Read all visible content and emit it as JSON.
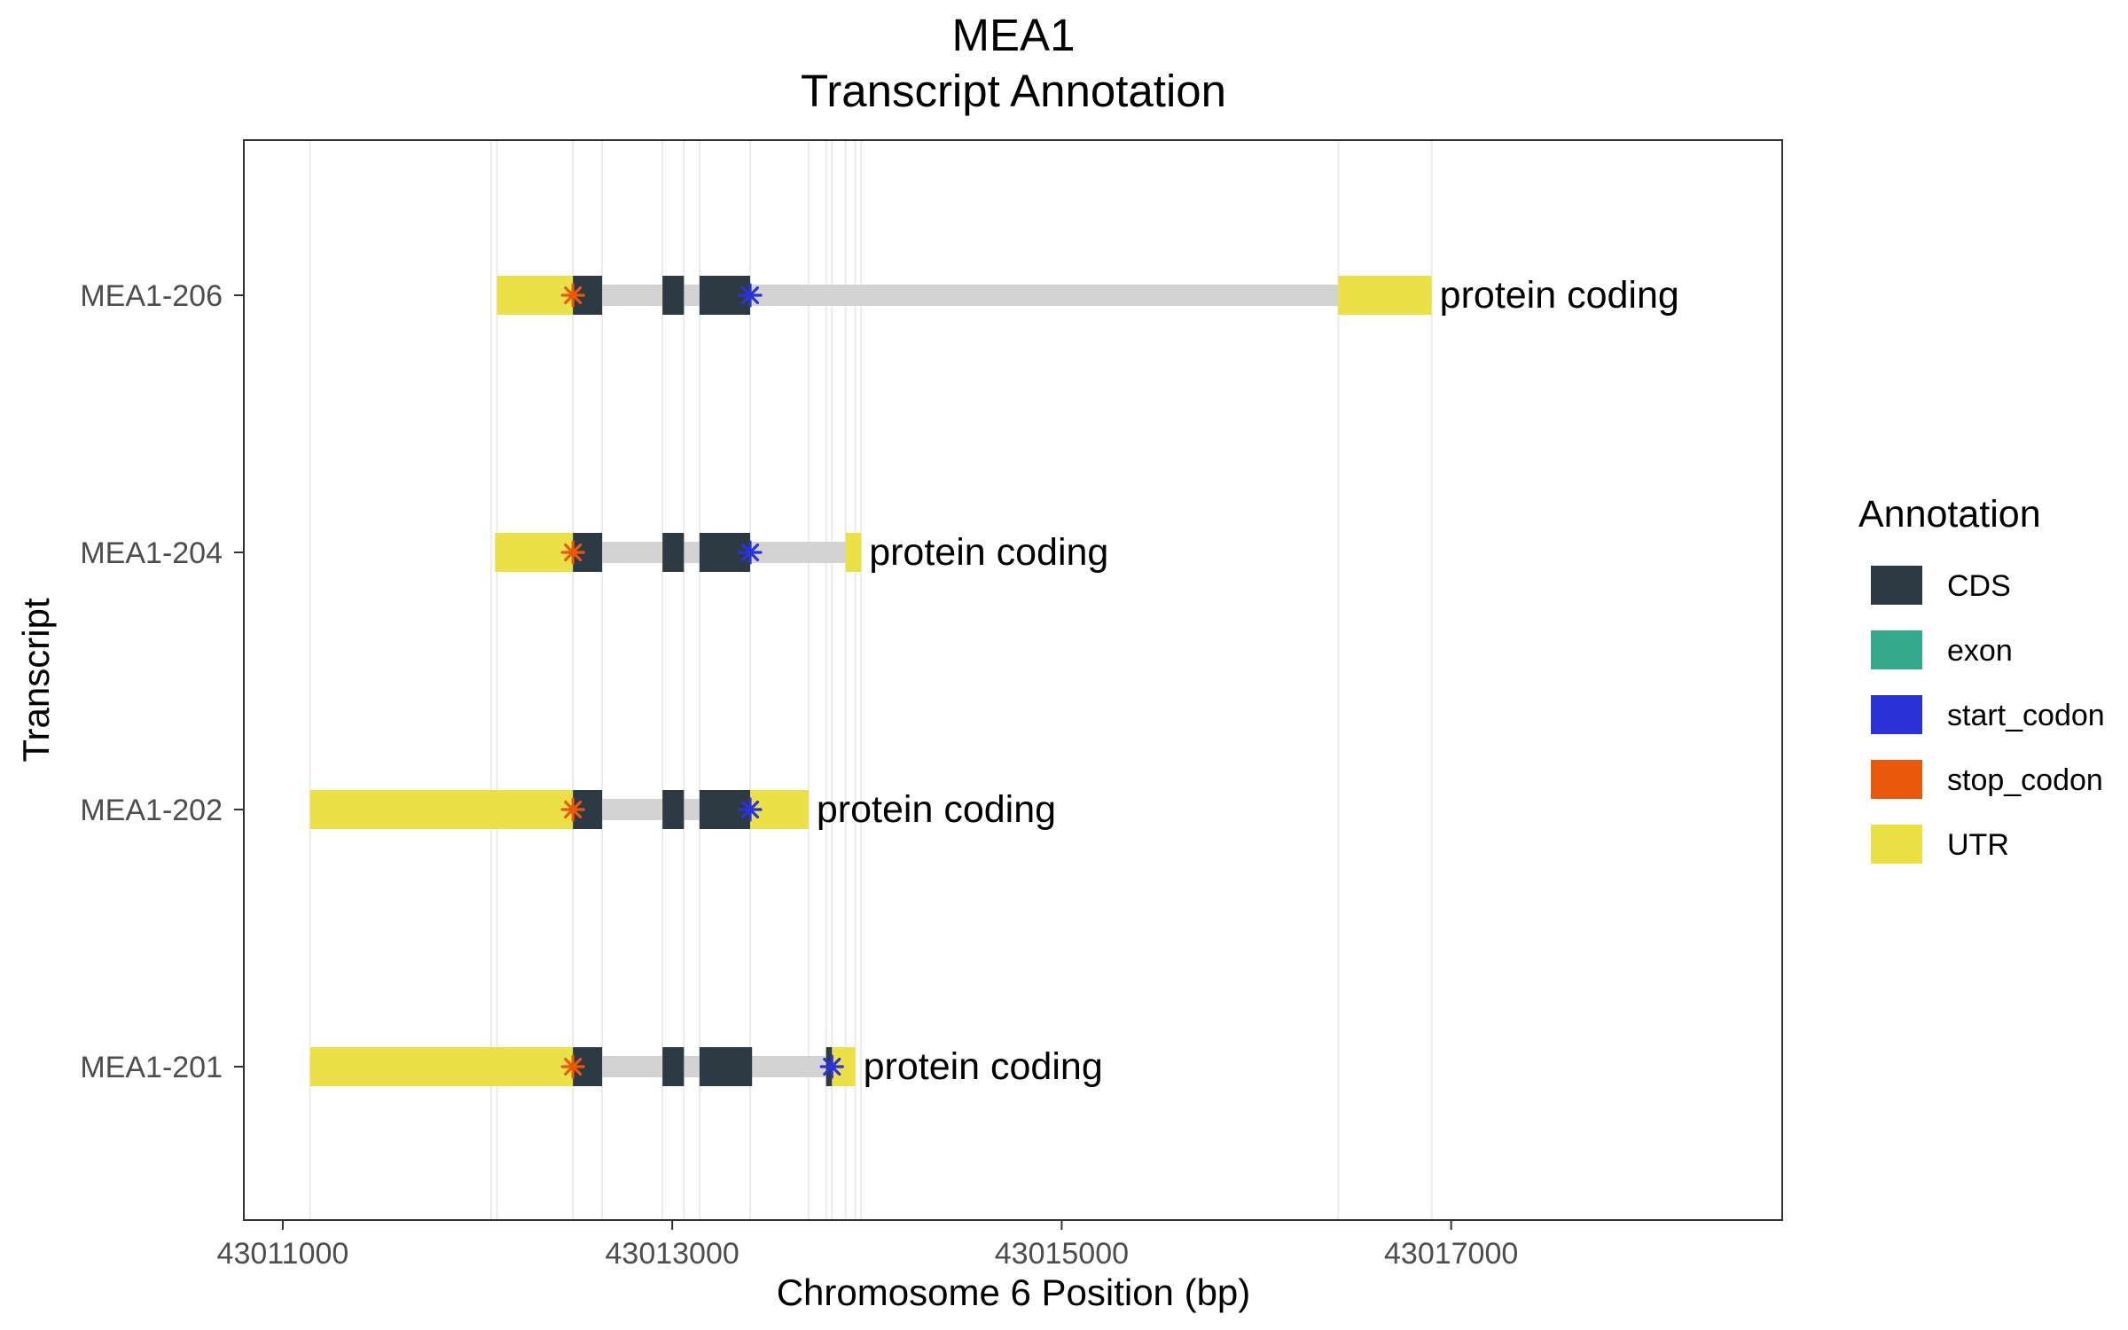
{
  "chart_data": {
    "type": "gene-track",
    "title": "MEA1",
    "subtitle": "Transcript Annotation",
    "xlabel": "Chromosome 6 Position (bp)",
    "ylabel": "Transcript",
    "xlim": [
      43010800,
      43018700
    ],
    "x_ticks": [
      43011000,
      43013000,
      43015000,
      43017000
    ],
    "x_tick_labels": [
      "43011000",
      "43013000",
      "43015000",
      "43017000"
    ],
    "grid": "vertical",
    "legend": {
      "title": "Annotation",
      "position": "right",
      "items": [
        {
          "label": "CDS",
          "color": "#2e3a43"
        },
        {
          "label": "exon",
          "color": "#35a98e"
        },
        {
          "label": "start_codon",
          "color": "#2a32d8"
        },
        {
          "label": "stop_codon",
          "color": "#e8590c"
        },
        {
          "label": "UTR",
          "color": "#ebe146"
        }
      ]
    },
    "intron_color": "#d3d3d3",
    "transcripts": [
      {
        "name": "MEA1-206",
        "biotype": "protein coding",
        "start": 43012100,
        "end": 43016900,
        "utr": [
          [
            43012100,
            43012490
          ],
          [
            43016420,
            43016900
          ]
        ],
        "cds": [
          [
            43012490,
            43012640
          ],
          [
            43012950,
            43013060
          ],
          [
            43013140,
            43013400
          ]
        ],
        "stop_codon": 43012490,
        "start_codon": 43013400
      },
      {
        "name": "MEA1-204",
        "biotype": "protein coding",
        "start": 43012090,
        "end": 43013970,
        "utr": [
          [
            43012090,
            43012490
          ],
          [
            43013890,
            43013970
          ]
        ],
        "cds": [
          [
            43012490,
            43012640
          ],
          [
            43012950,
            43013060
          ],
          [
            43013140,
            43013400
          ]
        ],
        "stop_codon": 43012490,
        "start_codon": 43013400
      },
      {
        "name": "MEA1-202",
        "biotype": "protein coding",
        "start": 43011140,
        "end": 43013700,
        "utr": [
          [
            43011140,
            43012490
          ],
          [
            43013400,
            43013700
          ]
        ],
        "cds": [
          [
            43012490,
            43012640
          ],
          [
            43012950,
            43013060
          ],
          [
            43013140,
            43013400
          ]
        ],
        "stop_codon": 43012490,
        "start_codon": 43013400
      },
      {
        "name": "MEA1-201",
        "biotype": "protein coding",
        "start": 43011140,
        "end": 43013940,
        "utr": [
          [
            43011140,
            43012490
          ],
          [
            43013820,
            43013940
          ]
        ],
        "cds": [
          [
            43012490,
            43012640
          ],
          [
            43012950,
            43013060
          ],
          [
            43013140,
            43013410
          ],
          [
            43013790,
            43013820
          ]
        ],
        "stop_codon": 43012490,
        "start_codon": 43013820
      }
    ],
    "gridlines": [
      43011140,
      43012070,
      43012100,
      43012490,
      43012640,
      43012950,
      43013060,
      43013140,
      43013400,
      43013700,
      43013790,
      43013820,
      43013890,
      43013940,
      43013970,
      43016420,
      43016900
    ]
  }
}
